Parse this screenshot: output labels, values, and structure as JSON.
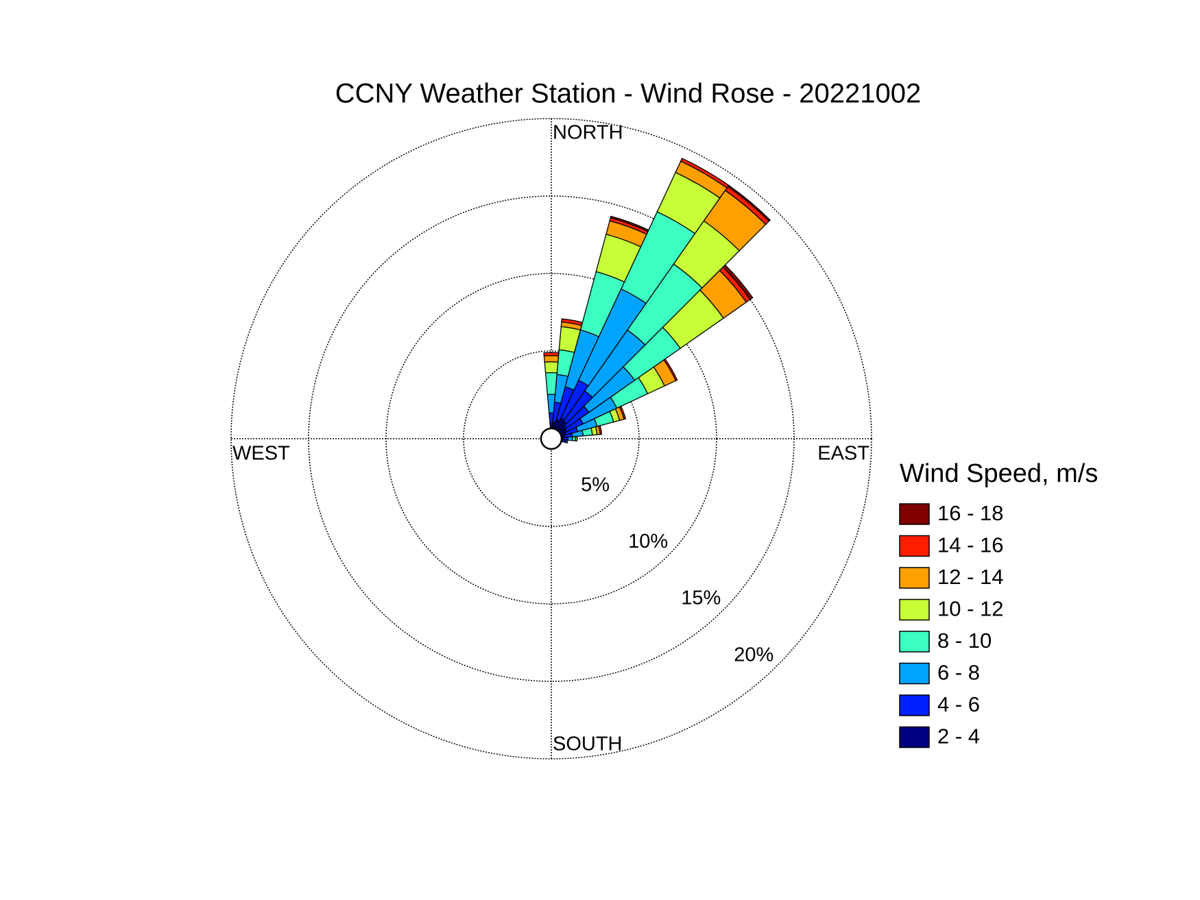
{
  "chart_data": {
    "type": "windrose",
    "title": "CCNY Weather Station - Wind Rose - 20221002",
    "compass": [
      "NORTH",
      "EAST",
      "SOUTH",
      "WEST"
    ],
    "legend_title": "Wind Speed, m/s",
    "x": [
      0,
      10,
      20,
      30,
      40,
      50,
      60,
      70,
      80,
      90,
      100
    ],
    "rlim": [
      0,
      20
    ],
    "rticks": [
      {
        "value": 5,
        "label": "5%"
      },
      {
        "value": 10,
        "label": "10%"
      },
      {
        "value": 15,
        "label": "15%"
      },
      {
        "value": 20,
        "label": "20%"
      }
    ],
    "series": [
      {
        "name": "2 - 4",
        "color": "#000080",
        "values": [
          0.3,
          0.4,
          0.6,
          0.8,
          0.7,
          0.5,
          0.4,
          0.3,
          0.2,
          0.1,
          0.1
        ]
      },
      {
        "name": "4 - 6",
        "color": "#0020ff",
        "values": [
          0.7,
          1.3,
          2.2,
          2.7,
          2.4,
          1.8,
          1.2,
          0.8,
          0.5,
          0.3,
          0.2
        ]
      },
      {
        "name": "6 - 8",
        "color": "#00a4ff",
        "values": [
          1.2,
          1.8,
          3.8,
          6.5,
          4.8,
          3.6,
          2.4,
          1.3,
          0.7,
          0.3,
          0.1
        ]
      },
      {
        "name": "8 - 10",
        "color": "#3cffc2",
        "values": [
          1.4,
          1.6,
          3.9,
          5.5,
          5.2,
          3.6,
          2.2,
          1.1,
          0.6,
          0.2,
          0
        ]
      },
      {
        "name": "10 - 12",
        "color": "#c6ff38",
        "values": [
          0.7,
          1.5,
          2.5,
          2.8,
          3.4,
          3.4,
          1.2,
          0.4,
          0.3,
          0.1,
          0
        ]
      },
      {
        "name": "12 - 14",
        "color": "#ffa000",
        "values": [
          0.4,
          0.3,
          0.9,
          0.8,
          2.4,
          1.8,
          0.8,
          0.3,
          0.2,
          0,
          0
        ]
      },
      {
        "name": "14 - 16",
        "color": "#ff1e00",
        "values": [
          0.2,
          0.2,
          0.2,
          0.2,
          0.3,
          0.3,
          0.1,
          0.1,
          0.1,
          0,
          0
        ]
      },
      {
        "name": "16 - 18",
        "color": "#800000",
        "values": [
          0,
          0,
          0.1,
          0,
          0.1,
          0.2,
          0,
          0,
          0,
          0,
          0
        ]
      }
    ]
  }
}
